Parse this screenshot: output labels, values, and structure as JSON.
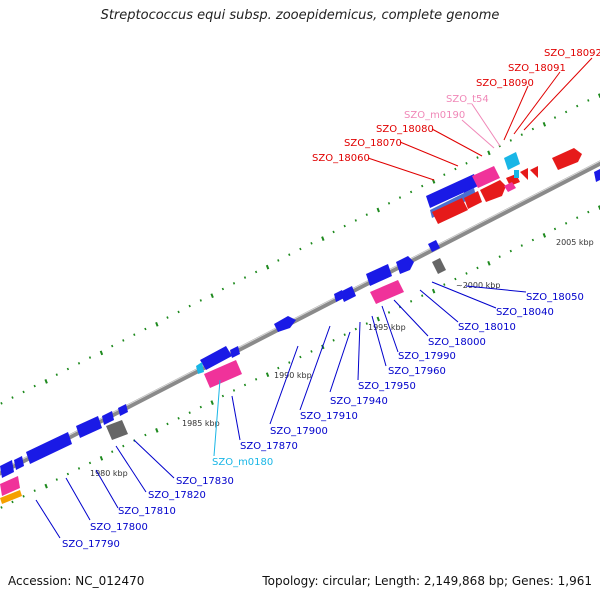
{
  "title": "Streptococcus equi subsp. zooepidemicus, complete genome",
  "footer": {
    "accession": "Accession: NC_012470",
    "summary": "Topology: circular; Length: 2,149,868 bp; Genes: 1,961"
  },
  "colors": {
    "backbone": "#8a8a8a",
    "tick": "#1e8a1e",
    "gene_blue": "#1a1ae6",
    "gene_steelblue": "#4a6fd0",
    "gene_red": "#e61a1a",
    "gene_pink": "#f0329a",
    "gene_gray": "#666666",
    "gene_cyan": "#19b6e6",
    "gene_orange": "#f5a000",
    "label_blue": "#0000cc",
    "label_red": "#e00000",
    "label_pink": "#f088b8",
    "label_cyan": "#19b6e6"
  },
  "kbp_labels": [
    "1980 kbp",
    "1985 kbp",
    "1990 kbp",
    "1995 kbp",
    "~2000 kbp",
    "2005 kbp"
  ],
  "gene_labels": {
    "red": [
      "SZO_18060",
      "SZO_18070",
      "SZO_18080",
      "SZO_18090",
      "SZO_18091",
      "SZO_18092"
    ],
    "pink": [
      "SZO_m0190",
      "SZO_t54"
    ],
    "blue_lower": [
      "SZO_17790",
      "SZO_17800",
      "SZO_17810",
      "SZO_17820",
      "SZO_17830",
      "SZO_17870",
      "SZO_17900",
      "SZO_17910",
      "SZO_17940",
      "SZO_17950",
      "SZO_17960",
      "SZO_17990",
      "SZO_18000",
      "SZO_18010",
      "SZO_18040",
      "SZO_18050"
    ],
    "cyan": [
      "SZO_m0180"
    ]
  }
}
